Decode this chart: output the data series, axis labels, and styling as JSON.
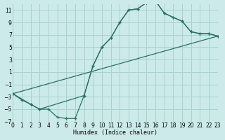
{
  "xlabel": "Humidex (Indice chaleur)",
  "bg_color": "#cceaea",
  "grid_color": "#aad0d0",
  "line_color": "#2a7060",
  "xlim": [
    0,
    23
  ],
  "ylim": [
    -7,
    12
  ],
  "xticks": [
    0,
    1,
    2,
    3,
    4,
    5,
    6,
    7,
    8,
    9,
    10,
    11,
    12,
    13,
    14,
    15,
    16,
    17,
    18,
    19,
    20,
    21,
    22,
    23
  ],
  "yticks": [
    -7,
    -5,
    -3,
    -1,
    1,
    3,
    5,
    7,
    9,
    11
  ],
  "curve1_x": [
    0,
    1,
    2,
    3,
    4,
    5,
    6,
    7,
    8,
    9,
    10,
    11,
    12,
    13,
    14,
    15,
    16,
    17,
    18,
    19,
    20,
    21,
    22,
    23
  ],
  "curve1_y": [
    -2.5,
    -3.5,
    -4.2,
    -5.0,
    -5.0,
    -6.3,
    -6.5,
    -6.5,
    -2.8,
    2.0,
    5.0,
    6.5,
    9.0,
    11.0,
    11.2,
    12.2,
    12.5,
    10.5,
    9.8,
    9.2,
    7.5,
    7.2,
    7.2,
    6.8
  ],
  "curve2_x": [
    0,
    2,
    3,
    8,
    9,
    10,
    11,
    12,
    13,
    14,
    15,
    16,
    17,
    19,
    20,
    21,
    22,
    23
  ],
  "curve2_y": [
    -2.5,
    -4.2,
    -5.0,
    -2.8,
    2.0,
    5.0,
    6.5,
    9.0,
    11.0,
    11.2,
    12.2,
    12.5,
    10.5,
    9.2,
    7.5,
    7.2,
    7.2,
    6.8
  ],
  "curve3_x": [
    0,
    23
  ],
  "curve3_y": [
    -2.5,
    6.8
  ]
}
